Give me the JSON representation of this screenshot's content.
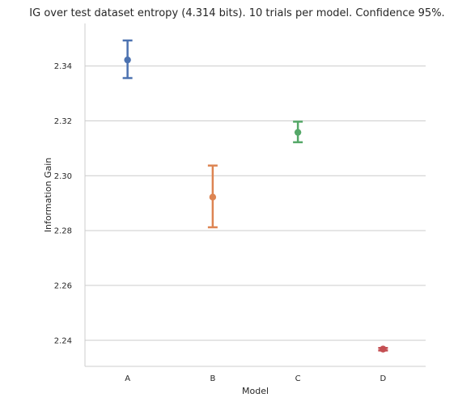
{
  "chart_data": {
    "type": "pointplot",
    "title": "IG over test dataset entropy (4.314 bits). 10 trials per model. Confidence 95%.",
    "xlabel": "Model",
    "ylabel": "Information Gain",
    "categories": [
      "A",
      "B",
      "C",
      "D"
    ],
    "values": [
      2.3422,
      2.2922,
      2.3158,
      2.2368
    ],
    "ci_low": [
      2.3356,
      2.2812,
      2.3122,
      2.2363
    ],
    "ci_high": [
      2.3493,
      2.3037,
      2.3197,
      2.2372
    ],
    "colors": [
      "#4c72b0",
      "#dd8452",
      "#55a868",
      "#c44e52"
    ],
    "ylim": [
      2.2305,
      2.3555
    ],
    "yticks": [
      2.24,
      2.26,
      2.28,
      2.3,
      2.32,
      2.34
    ],
    "ytick_labels": [
      "2.24",
      "2.26",
      "2.28",
      "2.30",
      "2.32",
      "2.34"
    ],
    "grid": "horizontal",
    "legend": "none"
  }
}
